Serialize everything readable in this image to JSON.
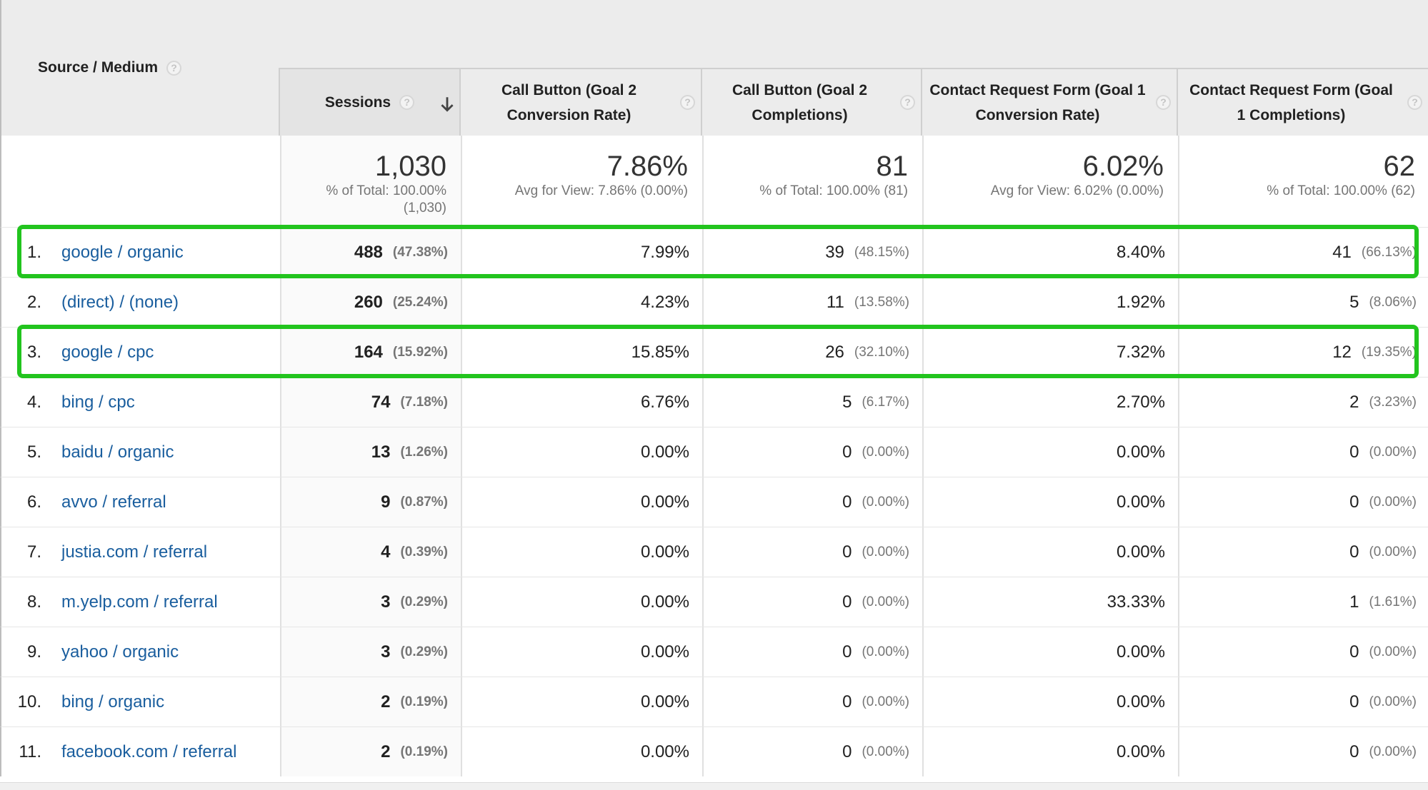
{
  "header": {
    "dimension_label": "Source / Medium",
    "metrics": [
      {
        "label": "Sessions"
      },
      {
        "label": "Call Button (Goal 2 Conversion Rate)"
      },
      {
        "label": "Call Button (Goal 2 Completions)"
      },
      {
        "label": "Contact Request Form (Goal 1 Conversion Rate)"
      },
      {
        "label": "Contact Request Form (Goal 1 Completions)"
      }
    ],
    "help_glyph": "?"
  },
  "totals": [
    {
      "value": "1,030",
      "sub": "% of Total: 100.00% (1,030)"
    },
    {
      "value": "7.86%",
      "sub": "Avg for View: 7.86% (0.00%)"
    },
    {
      "value": "81",
      "sub": "% of Total: 100.00% (81)"
    },
    {
      "value": "6.02%",
      "sub": "Avg for View: 6.02% (0.00%)"
    },
    {
      "value": "62",
      "sub": "% of Total: 100.00% (62)"
    }
  ],
  "rows": [
    {
      "index": "1.",
      "source": "google / organic",
      "sessions": "488",
      "sessions_pct": "(47.38%)",
      "call_rate": "7.99%",
      "call_comp": "39",
      "call_comp_pct": "(48.15%)",
      "form_rate": "8.40%",
      "form_comp": "41",
      "form_comp_pct": "(66.13%)"
    },
    {
      "index": "2.",
      "source": "(direct) / (none)",
      "sessions": "260",
      "sessions_pct": "(25.24%)",
      "call_rate": "4.23%",
      "call_comp": "11",
      "call_comp_pct": "(13.58%)",
      "form_rate": "1.92%",
      "form_comp": "5",
      "form_comp_pct": "(8.06%)"
    },
    {
      "index": "3.",
      "source": "google / cpc",
      "sessions": "164",
      "sessions_pct": "(15.92%)",
      "call_rate": "15.85%",
      "call_comp": "26",
      "call_comp_pct": "(32.10%)",
      "form_rate": "7.32%",
      "form_comp": "12",
      "form_comp_pct": "(19.35%)"
    },
    {
      "index": "4.",
      "source": "bing / cpc",
      "sessions": "74",
      "sessions_pct": "(7.18%)",
      "call_rate": "6.76%",
      "call_comp": "5",
      "call_comp_pct": "(6.17%)",
      "form_rate": "2.70%",
      "form_comp": "2",
      "form_comp_pct": "(3.23%)"
    },
    {
      "index": "5.",
      "source": "baidu / organic",
      "sessions": "13",
      "sessions_pct": "(1.26%)",
      "call_rate": "0.00%",
      "call_comp": "0",
      "call_comp_pct": "(0.00%)",
      "form_rate": "0.00%",
      "form_comp": "0",
      "form_comp_pct": "(0.00%)"
    },
    {
      "index": "6.",
      "source": "avvo / referral",
      "sessions": "9",
      "sessions_pct": "(0.87%)",
      "call_rate": "0.00%",
      "call_comp": "0",
      "call_comp_pct": "(0.00%)",
      "form_rate": "0.00%",
      "form_comp": "0",
      "form_comp_pct": "(0.00%)"
    },
    {
      "index": "7.",
      "source": "justia.com / referral",
      "sessions": "4",
      "sessions_pct": "(0.39%)",
      "call_rate": "0.00%",
      "call_comp": "0",
      "call_comp_pct": "(0.00%)",
      "form_rate": "0.00%",
      "form_comp": "0",
      "form_comp_pct": "(0.00%)"
    },
    {
      "index": "8.",
      "source": "m.yelp.com / referral",
      "sessions": "3",
      "sessions_pct": "(0.29%)",
      "call_rate": "0.00%",
      "call_comp": "0",
      "call_comp_pct": "(0.00%)",
      "form_rate": "33.33%",
      "form_comp": "1",
      "form_comp_pct": "(1.61%)"
    },
    {
      "index": "9.",
      "source": "yahoo / organic",
      "sessions": "3",
      "sessions_pct": "(0.29%)",
      "call_rate": "0.00%",
      "call_comp": "0",
      "call_comp_pct": "(0.00%)",
      "form_rate": "0.00%",
      "form_comp": "0",
      "form_comp_pct": "(0.00%)"
    },
    {
      "index": "10.",
      "source": "bing / organic",
      "sessions": "2",
      "sessions_pct": "(0.19%)",
      "call_rate": "0.00%",
      "call_comp": "0",
      "call_comp_pct": "(0.00%)",
      "form_rate": "0.00%",
      "form_comp": "0",
      "form_comp_pct": "(0.00%)"
    },
    {
      "index": "11.",
      "source": "facebook.com / referral",
      "sessions": "2",
      "sessions_pct": "(0.19%)",
      "call_rate": "0.00%",
      "call_comp": "0",
      "call_comp_pct": "(0.00%)",
      "form_rate": "0.00%",
      "form_comp": "0",
      "form_comp_pct": "(0.00%)"
    }
  ],
  "highlighted_rows": [
    1,
    3
  ],
  "colors": {
    "link": "#1a5e9e",
    "highlight": "#22c41e",
    "header_bg": "#ececec"
  }
}
